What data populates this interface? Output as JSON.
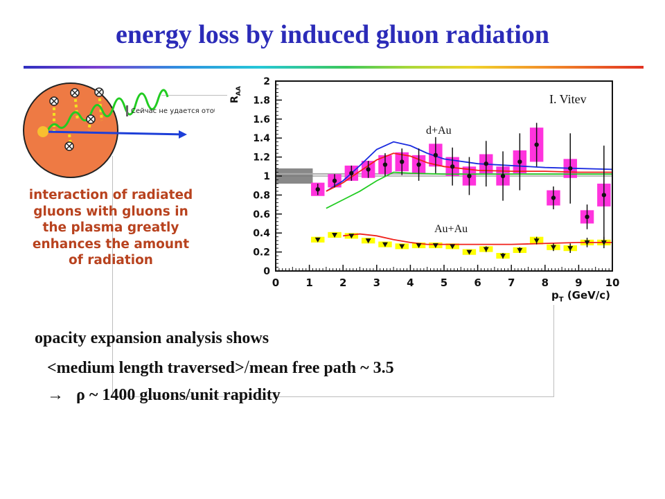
{
  "title": "energy loss by induced gluon radiation",
  "diagram": {
    "broken_image_text": "Сейчас не удается отобр"
  },
  "caption_lines": [
    "interaction of radiated",
    "gluons with gluons in",
    "the plasma greatly",
    "enhances the amount",
    "of radiation"
  ],
  "chart_data": {
    "type": "scatter",
    "xlabel": "p",
    "xlabel_sub": "T",
    "xlabel_unit": "(GeV/c)",
    "ylabel": "R",
    "ylabel_sub": "AA",
    "xlim": [
      0,
      10
    ],
    "ylim": [
      0,
      2
    ],
    "x_ticks": [
      "0",
      "1",
      "2",
      "3",
      "4",
      "5",
      "6",
      "7",
      "8",
      "9",
      "10"
    ],
    "y_ticks": [
      "0",
      "0.2",
      "0.4",
      "0.6",
      "0.8",
      "1",
      "1.2",
      "1.4",
      "1.6",
      "1.8",
      "2"
    ],
    "annotations": [
      "I. Vitev",
      "d+Au",
      "Au+Au"
    ],
    "series": [
      {
        "name": "d+Au",
        "marker": "circle",
        "box_color": "#ff33dd",
        "points": [
          {
            "x": 1.25,
            "y": 0.86,
            "err": 0.06,
            "box": 0.07
          },
          {
            "x": 1.75,
            "y": 0.95,
            "err": 0.07,
            "box": 0.07
          },
          {
            "x": 2.25,
            "y": 1.03,
            "err": 0.08,
            "box": 0.08
          },
          {
            "x": 2.75,
            "y": 1.07,
            "err": 0.09,
            "box": 0.09
          },
          {
            "x": 3.25,
            "y": 1.12,
            "err": 0.12,
            "box": 0.1
          },
          {
            "x": 3.75,
            "y": 1.15,
            "err": 0.14,
            "box": 0.1
          },
          {
            "x": 4.25,
            "y": 1.12,
            "err": 0.17,
            "box": 0.1
          },
          {
            "x": 4.75,
            "y": 1.22,
            "err": 0.19,
            "box": 0.12
          },
          {
            "x": 5.25,
            "y": 1.1,
            "err": 0.2,
            "box": 0.1
          },
          {
            "x": 5.75,
            "y": 1.0,
            "err": 0.2,
            "box": 0.1
          },
          {
            "x": 6.25,
            "y": 1.13,
            "err": 0.24,
            "box": 0.1
          },
          {
            "x": 6.75,
            "y": 1.0,
            "err": 0.26,
            "box": 0.1
          },
          {
            "x": 7.25,
            "y": 1.15,
            "err": 0.3,
            "box": 0.12
          },
          {
            "x": 7.75,
            "y": 1.33,
            "err": 0.23,
            "box": 0.18
          },
          {
            "x": 8.25,
            "y": 0.77,
            "err": 0.12,
            "box": 0.08
          },
          {
            "x": 8.75,
            "y": 1.08,
            "err": 0.37,
            "box": 0.1
          },
          {
            "x": 9.25,
            "y": 0.57,
            "err": 0.13,
            "box": 0.07
          },
          {
            "x": 9.75,
            "y": 0.8,
            "err": 0.52,
            "box": 0.12
          }
        ]
      },
      {
        "name": "Au+Au",
        "marker": "triangle",
        "box_color": "#ffff00",
        "points": [
          {
            "x": 1.25,
            "y": 0.33,
            "err": 0.02,
            "box": 0.03
          },
          {
            "x": 1.75,
            "y": 0.38,
            "err": 0.02,
            "box": 0.03
          },
          {
            "x": 2.25,
            "y": 0.37,
            "err": 0.02,
            "box": 0.03
          },
          {
            "x": 2.75,
            "y": 0.32,
            "err": 0.02,
            "box": 0.03
          },
          {
            "x": 3.25,
            "y": 0.28,
            "err": 0.02,
            "box": 0.03
          },
          {
            "x": 3.75,
            "y": 0.26,
            "err": 0.02,
            "box": 0.03
          },
          {
            "x": 4.25,
            "y": 0.27,
            "err": 0.02,
            "box": 0.03
          },
          {
            "x": 4.75,
            "y": 0.27,
            "err": 0.02,
            "box": 0.03
          },
          {
            "x": 5.25,
            "y": 0.26,
            "err": 0.02,
            "box": 0.03
          },
          {
            "x": 5.75,
            "y": 0.2,
            "err": 0.02,
            "box": 0.03
          },
          {
            "x": 6.25,
            "y": 0.23,
            "err": 0.03,
            "box": 0.03
          },
          {
            "x": 6.75,
            "y": 0.16,
            "err": 0.03,
            "box": 0.03
          },
          {
            "x": 7.25,
            "y": 0.22,
            "err": 0.03,
            "box": 0.03
          },
          {
            "x": 7.75,
            "y": 0.32,
            "err": 0.04,
            "box": 0.04
          },
          {
            "x": 8.25,
            "y": 0.25,
            "err": 0.04,
            "box": 0.03
          },
          {
            "x": 8.75,
            "y": 0.24,
            "err": 0.05,
            "box": 0.03
          },
          {
            "x": 9.25,
            "y": 0.3,
            "err": 0.05,
            "box": 0.03
          },
          {
            "x": 9.75,
            "y": 0.3,
            "err": 0.06,
            "box": 0.03
          }
        ]
      }
    ],
    "curves": [
      {
        "color": "#1a2be0",
        "x": [
          1.5,
          2,
          2.5,
          3,
          3.5,
          4,
          4.5,
          5,
          6,
          7,
          8,
          9,
          10
        ],
        "y": [
          0.84,
          0.95,
          1.11,
          1.28,
          1.36,
          1.32,
          1.24,
          1.18,
          1.13,
          1.11,
          1.09,
          1.08,
          1.07
        ]
      },
      {
        "color": "#f0201a",
        "x": [
          1.5,
          2,
          2.5,
          3,
          3.5,
          4,
          4.5,
          5,
          6,
          7,
          8,
          9,
          10
        ],
        "y": [
          0.84,
          0.93,
          1.05,
          1.17,
          1.24,
          1.21,
          1.14,
          1.1,
          1.06,
          1.05,
          1.05,
          1.04,
          1.04
        ]
      },
      {
        "color": "#22cc22",
        "x": [
          1.5,
          2,
          2.5,
          3,
          3.5,
          4,
          5,
          6,
          7,
          8,
          9,
          10
        ],
        "y": [
          0.66,
          0.75,
          0.84,
          0.95,
          1.04,
          1.03,
          1.02,
          1.02,
          1.02,
          1.02,
          1.02,
          1.02
        ]
      },
      {
        "color": "#f0201a",
        "x": [
          2,
          2.5,
          3,
          3.5,
          4,
          4.5,
          5,
          6,
          7,
          8,
          9,
          10
        ],
        "y": [
          0.37,
          0.39,
          0.37,
          0.33,
          0.3,
          0.28,
          0.28,
          0.28,
          0.28,
          0.29,
          0.3,
          0.3
        ]
      }
    ],
    "norm_band": {
      "x": [
        0,
        1.1
      ],
      "y": [
        0.92,
        1.08
      ]
    },
    "ref_line": {
      "y": [
        1.02,
        1.03
      ]
    }
  },
  "analysis": {
    "line1": "opacity expansion analysis shows",
    "line2_a": "<medium length traversed>",
    "line2_slash": "/",
    "line2_b": "mean free path ~ 3.5",
    "line3": "→   ρ ~ 1400 gluons/unit rapidity"
  }
}
